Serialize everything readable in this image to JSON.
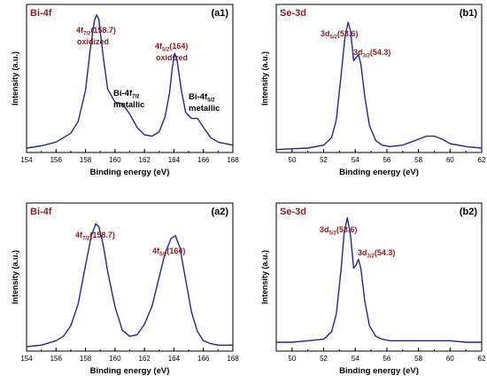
{
  "chart_data": [
    {
      "id": "a1",
      "type": "line",
      "tag": "Bi-4f",
      "panel_label": "(a1)",
      "xlabel": "Binding energy (eV)",
      "ylabel": "Intensity (a.u.)",
      "xlim": [
        154,
        168
      ],
      "ticks": [
        154,
        156,
        158,
        160,
        162,
        164,
        166,
        168
      ],
      "series": [
        {
          "x": [
            154,
            155,
            156,
            157,
            157.5,
            158,
            158.3,
            158.6,
            158.75,
            158.9,
            159.2,
            159.5,
            160,
            160.5,
            161,
            161.5,
            162,
            162.5,
            163,
            163.4,
            163.7,
            163.9,
            164.05,
            164.2,
            164.5,
            164.8,
            165.2,
            165.6,
            166,
            166.5,
            167,
            168
          ],
          "y": [
            0.03,
            0.045,
            0.07,
            0.13,
            0.21,
            0.42,
            0.68,
            0.89,
            0.93,
            0.9,
            0.65,
            0.43,
            0.34,
            0.33,
            0.26,
            0.17,
            0.12,
            0.11,
            0.14,
            0.24,
            0.4,
            0.58,
            0.67,
            0.63,
            0.42,
            0.27,
            0.23,
            0.23,
            0.17,
            0.1,
            0.07,
            0.05
          ]
        }
      ],
      "annotations": [
        {
          "main": "4f",
          "sub": "7/2",
          "after": "(158.7)",
          "line2": "oxidized",
          "color": "red"
        },
        {
          "main": "Bi-4f",
          "sub": "7/2",
          "after": "",
          "line2": "metallic",
          "color": "black"
        },
        {
          "main": "4f",
          "sub": "5/2",
          "after": "(164)",
          "line2": "oxidized",
          "color": "red"
        },
        {
          "main": "Bi-4f",
          "sub": "5/2",
          "after": "",
          "line2": "metallic",
          "color": "black"
        }
      ]
    },
    {
      "id": "b1",
      "type": "line",
      "tag": "Se-3d",
      "panel_label": "(b1)",
      "xlabel": "Binding energy (eV)",
      "ylabel": "Intensity (a.u.)",
      "xlim": [
        49,
        62
      ],
      "ticks": [
        50,
        52,
        54,
        56,
        58,
        60,
        62
      ],
      "series": [
        {
          "x": [
            49,
            50,
            51,
            52,
            52.5,
            52.8,
            53.1,
            53.35,
            53.55,
            53.7,
            53.9,
            54.05,
            54.2,
            54.35,
            54.6,
            54.9,
            55.3,
            55.7,
            56.2,
            57,
            57.5,
            58,
            58.5,
            59,
            59.5,
            60,
            61,
            62
          ],
          "y": [
            0.02,
            0.025,
            0.03,
            0.05,
            0.1,
            0.22,
            0.52,
            0.78,
            0.88,
            0.82,
            0.62,
            0.64,
            0.66,
            0.6,
            0.38,
            0.18,
            0.08,
            0.05,
            0.04,
            0.05,
            0.07,
            0.09,
            0.11,
            0.11,
            0.09,
            0.06,
            0.04,
            0.03
          ]
        }
      ],
      "annotations": [
        {
          "main": "3d",
          "sub": "5/2",
          "after": "(53.6)",
          "line2": "",
          "color": "red"
        },
        {
          "main": "3d",
          "sub": "3/2",
          "after": "(54.3)",
          "line2": "",
          "color": "red"
        }
      ]
    },
    {
      "id": "a2",
      "type": "line",
      "tag": "Bi-4f",
      "panel_label": "(a2)",
      "xlabel": "Binding energy (eV)",
      "ylabel": "Intensity (a.u.)",
      "xlim": [
        154,
        168
      ],
      "ticks": [
        154,
        156,
        158,
        160,
        162,
        164,
        166,
        168
      ],
      "series": [
        {
          "x": [
            154,
            155,
            156,
            156.5,
            157,
            157.5,
            158,
            158.4,
            158.7,
            158.9,
            159.2,
            159.5,
            160,
            160.5,
            161,
            161.5,
            162,
            162.5,
            163,
            163.4,
            163.8,
            164.1,
            164.4,
            164.8,
            165.2,
            165.6,
            166,
            166.5,
            167,
            168
          ],
          "y": [
            0.03,
            0.04,
            0.07,
            0.1,
            0.17,
            0.32,
            0.58,
            0.78,
            0.86,
            0.84,
            0.72,
            0.54,
            0.3,
            0.14,
            0.1,
            0.11,
            0.18,
            0.3,
            0.5,
            0.66,
            0.76,
            0.78,
            0.7,
            0.48,
            0.26,
            0.13,
            0.07,
            0.05,
            0.04,
            0.04
          ]
        }
      ],
      "annotations": [
        {
          "main": "4f",
          "sub": "7/2",
          "after": "(158.7)",
          "line2": "",
          "color": "red"
        },
        {
          "main": "4f",
          "sub": "5/2",
          "after": "(164)",
          "line2": "",
          "color": "red"
        }
      ]
    },
    {
      "id": "b2",
      "type": "line",
      "tag": "Se-3d",
      "panel_label": "(b2)",
      "xlabel": "Binding energy (eV)",
      "ylabel": "Intensity (a.u.)",
      "xlim": [
        49,
        62
      ],
      "ticks": [
        50,
        52,
        54,
        56,
        58,
        60,
        62
      ],
      "series": [
        {
          "x": [
            49,
            50,
            51,
            52,
            52.5,
            52.8,
            53.1,
            53.3,
            53.5,
            53.7,
            53.9,
            54.05,
            54.2,
            54.35,
            54.6,
            54.9,
            55.3,
            55.7,
            56.2,
            57,
            58,
            59,
            60,
            61,
            62
          ],
          "y": [
            0.06,
            0.06,
            0.07,
            0.08,
            0.13,
            0.25,
            0.55,
            0.8,
            0.9,
            0.78,
            0.56,
            0.58,
            0.62,
            0.56,
            0.34,
            0.17,
            0.1,
            0.08,
            0.07,
            0.07,
            0.07,
            0.07,
            0.07,
            0.06,
            0.06
          ]
        }
      ],
      "annotations": [
        {
          "main": "3d",
          "sub": "5/2",
          "after": "(53.6)",
          "line2": "",
          "color": "red"
        },
        {
          "main": "3d",
          "sub": "3/2",
          "after": "(54.3)",
          "line2": "",
          "color": "red"
        }
      ]
    }
  ]
}
